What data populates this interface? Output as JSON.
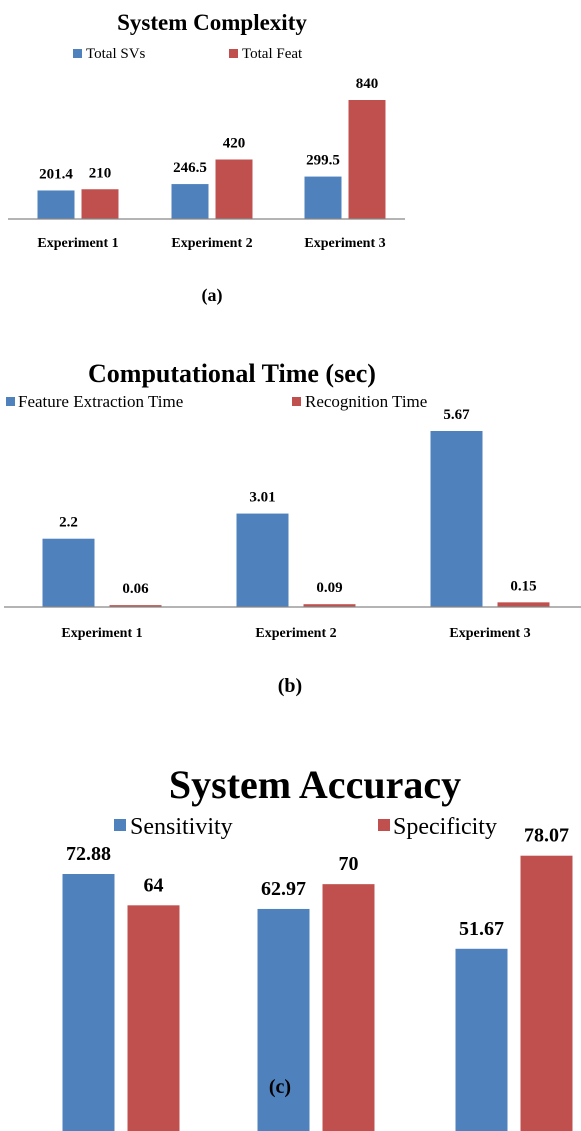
{
  "colors": {
    "series_a": "#4f81bd",
    "series_b": "#c0504d",
    "axis": "#888888",
    "text": "#000000"
  },
  "chart_data": [
    {
      "type": "bar",
      "title": "System Complexity",
      "categories": [
        "Experiment 1",
        "Experiment 2",
        "Experiment 3"
      ],
      "series": [
        {
          "name": "Total SVs",
          "values": [
            201.4,
            246.5,
            299.5
          ],
          "labels": [
            "201.4",
            "246.5",
            "299.5"
          ]
        },
        {
          "name": "Total Feat",
          "values": [
            210,
            420,
            840
          ],
          "labels": [
            "210",
            "420",
            "840"
          ]
        }
      ],
      "legend": "top",
      "grid": false,
      "caption": "(a)"
    },
    {
      "type": "bar",
      "title": "Computational Time (sec)",
      "categories": [
        "Experiment 1",
        "Experiment 2",
        "Experiment 3"
      ],
      "series": [
        {
          "name": "Feature Extraction Time",
          "values": [
            2.2,
            3.01,
            5.67
          ],
          "labels": [
            "2.2",
            "3.01",
            "5.67"
          ]
        },
        {
          "name": "Recognition Time",
          "values": [
            0.06,
            0.09,
            0.15
          ],
          "labels": [
            "0.06",
            "0.09",
            "0.15"
          ]
        }
      ],
      "legend": "top",
      "grid": false,
      "caption": "(b)"
    },
    {
      "type": "bar",
      "title": "System Accuracy",
      "categories": [
        "",
        "",
        ""
      ],
      "series": [
        {
          "name": "Sensitivity",
          "values": [
            72.88,
            62.97,
            51.67
          ],
          "labels": [
            "72.88",
            "62.97",
            "51.67"
          ]
        },
        {
          "name": "Specificity",
          "values": [
            64,
            70,
            78.07
          ],
          "labels": [
            "64",
            "70",
            "78.07"
          ]
        }
      ],
      "legend": "top",
      "grid": false,
      "caption": "(c)"
    }
  ]
}
